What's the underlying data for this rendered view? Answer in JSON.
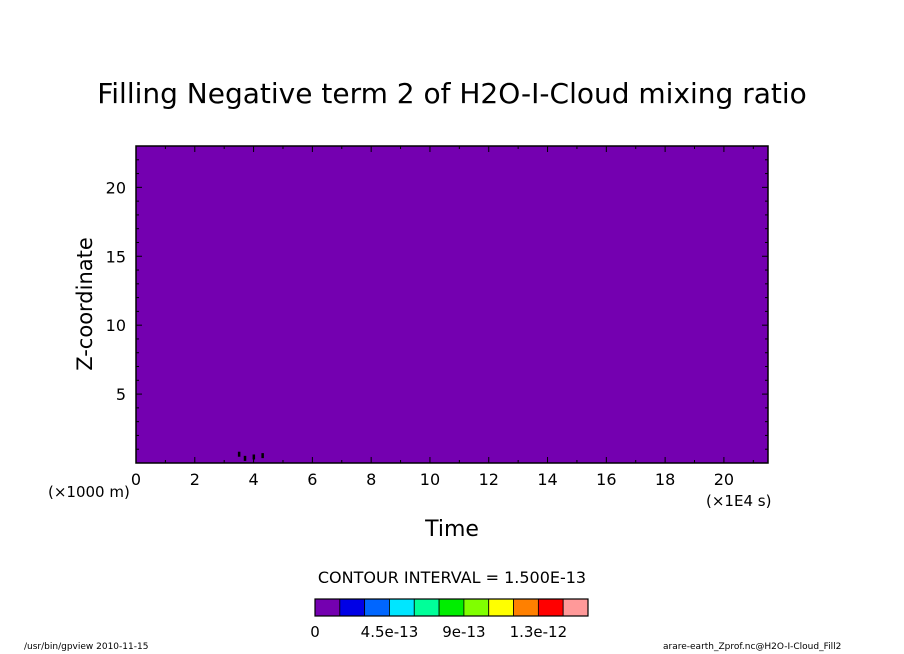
{
  "chart_data": {
    "type": "heatmap",
    "title": "Filling Negative term 2 of H2O-I-Cloud mixing ratio",
    "xlabel": "Time",
    "ylabel": "Z-coordinate",
    "x_units": "(×1E4 s)",
    "y_units": "(×1000 m)",
    "x_ticks": [
      "0",
      "2",
      "4",
      "6",
      "8",
      "10",
      "12",
      "14",
      "16",
      "18",
      "20"
    ],
    "y_ticks": [
      "5",
      "10",
      "15",
      "20"
    ],
    "xlim": [
      0,
      21.5
    ],
    "ylim": [
      0,
      23
    ],
    "field_value": 0,
    "fill_color": "#7400b0",
    "small_features": [
      {
        "x": 3.5,
        "y": 0.6
      },
      {
        "x": 3.7,
        "y": 0.3
      },
      {
        "x": 4.0,
        "y": 0.4
      },
      {
        "x": 4.3,
        "y": 0.5
      }
    ],
    "contour_interval": "CONTOUR INTERVAL = 1.500E-13",
    "colorbar": {
      "colors": [
        "#7400b0",
        "#0000e6",
        "#0066ff",
        "#00e6ff",
        "#00ff99",
        "#00ee00",
        "#80ff00",
        "#ffff00",
        "#ff8000",
        "#ff0000",
        "#ff9999"
      ],
      "labels": [
        "0",
        "4.5e-13",
        "9e-13",
        "1.3e-12"
      ],
      "label_index": [
        0,
        3,
        6,
        9
      ]
    }
  },
  "footer": {
    "left": "/usr/bin/gpview   2010-11-15",
    "right": "arare-earth_Zprof.nc@H2O-I-Cloud_Fill2"
  }
}
